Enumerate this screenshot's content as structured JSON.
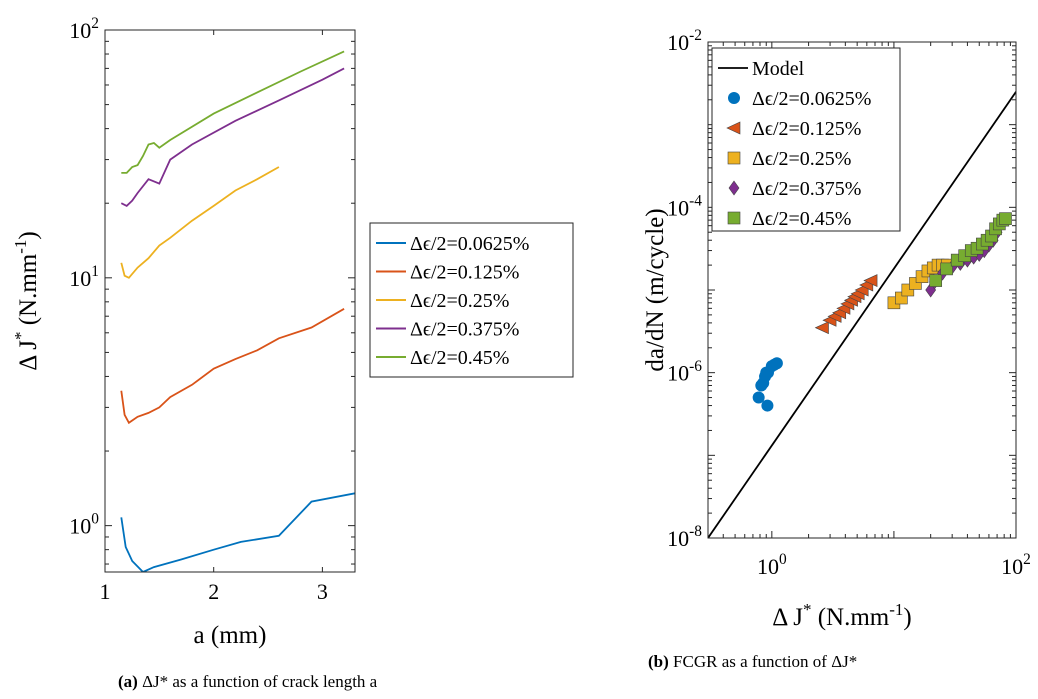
{
  "chart_data": [
    {
      "type": "line",
      "panel": "a",
      "caption_tag": "(a)",
      "caption_text": "ΔJ* as a function of crack length a",
      "xlabel": "a (mm)",
      "ylabel": "Δ J* (N.mm-1)",
      "xscale": "linear",
      "yscale": "log",
      "xlim": [
        1,
        3.3
      ],
      "ylim": [
        0.65,
        100
      ],
      "xticks": [
        1,
        2,
        3
      ],
      "xtick_labels": [
        "1",
        "2",
        "3"
      ],
      "yticks": [
        1,
        10,
        100
      ],
      "ytick_labels": [
        [
          "10",
          "0"
        ],
        [
          "10",
          "1"
        ],
        [
          "10",
          "2"
        ]
      ],
      "legend_position": "outside-right",
      "series": [
        {
          "name": "Δϵ/2=0.0625%",
          "color": "#0072BD",
          "x": [
            1.15,
            1.19,
            1.25,
            1.35,
            1.45,
            1.7,
            2.0,
            2.25,
            2.6,
            2.9,
            3.3
          ],
          "y": [
            1.08,
            0.82,
            0.72,
            0.65,
            0.68,
            0.73,
            0.8,
            0.86,
            0.91,
            1.25,
            1.35
          ]
        },
        {
          "name": "Δϵ/2=0.125%",
          "color": "#D95319",
          "x": [
            1.15,
            1.18,
            1.22,
            1.3,
            1.4,
            1.5,
            1.6,
            1.8,
            2.0,
            2.2,
            2.4,
            2.6,
            2.9,
            3.2
          ],
          "y": [
            3.5,
            2.8,
            2.6,
            2.75,
            2.85,
            3.0,
            3.3,
            3.7,
            4.3,
            4.7,
            5.1,
            5.7,
            6.3,
            7.5
          ]
        },
        {
          "name": "Δϵ/2=0.25%",
          "color": "#EDB120",
          "x": [
            1.15,
            1.18,
            1.22,
            1.3,
            1.4,
            1.5,
            1.6,
            1.8,
            2.0,
            2.2,
            2.4,
            2.6
          ],
          "y": [
            11.5,
            10.2,
            10.0,
            11.0,
            12.0,
            13.5,
            14.5,
            17.0,
            19.5,
            22.5,
            25.0,
            28.0
          ]
        },
        {
          "name": "Δϵ/2=0.375%",
          "color": "#7E2F8E",
          "x": [
            1.15,
            1.2,
            1.25,
            1.3,
            1.4,
            1.5,
            1.6,
            1.8,
            2.2,
            2.6,
            3.0,
            3.2
          ],
          "y": [
            20.0,
            19.5,
            20.5,
            22.0,
            25.0,
            24.0,
            30.0,
            34.5,
            43.0,
            52.0,
            63.0,
            70.0
          ]
        },
        {
          "name": "Δϵ/2=0.45%",
          "color": "#77AC30",
          "x": [
            1.15,
            1.2,
            1.25,
            1.3,
            1.35,
            1.4,
            1.45,
            1.5,
            1.6,
            2.0,
            2.4,
            2.8,
            3.2
          ],
          "y": [
            26.5,
            26.5,
            28.0,
            28.5,
            31.0,
            34.5,
            35.0,
            33.5,
            36.0,
            46.0,
            56.0,
            68.0,
            82.0
          ]
        }
      ]
    },
    {
      "type": "scatter",
      "panel": "b",
      "caption_tag": "(b)",
      "caption_text": "FCGR as a function of ΔJ*",
      "xlabel": "Δ J* (N.mm-1)",
      "ylabel": "da/dN (m/cycle)",
      "xscale": "log",
      "yscale": "log",
      "xlim": [
        0.3,
        100
      ],
      "ylim": [
        1e-08,
        0.01
      ],
      "xticks": [
        1,
        100
      ],
      "xtick_labels": [
        [
          "10",
          "0"
        ],
        [
          "10",
          "2"
        ]
      ],
      "yticks": [
        1e-08,
        1e-06,
        0.0001,
        0.01
      ],
      "ytick_labels": [
        [
          "10",
          "-8"
        ],
        [
          "10",
          "-6"
        ],
        [
          "10",
          "-4"
        ],
        [
          "10",
          "-2"
        ]
      ],
      "legend_position": "top-left",
      "model": {
        "name": "Model",
        "color": "#000000",
        "x": [
          0.3,
          100
        ],
        "y": [
          1e-08,
          0.0025
        ]
      },
      "series": [
        {
          "name": "Δϵ/2=0.0625%",
          "marker": "circle",
          "color": "#0072BD",
          "x": [
            0.78,
            0.82,
            0.85,
            0.88,
            0.9,
            0.93,
            1.0,
            1.05,
            1.1,
            0.92
          ],
          "y": [
            5e-07,
            7e-07,
            7.5e-07,
            9e-07,
            1e-06,
            1e-06,
            1.2e-06,
            1.25e-06,
            1.3e-06,
            4e-07
          ]
        },
        {
          "name": "Δϵ/2=0.125%",
          "marker": "triangle-left",
          "color": "#D95319",
          "x": [
            2.6,
            3.0,
            3.3,
            3.6,
            3.9,
            4.2,
            4.5,
            4.8,
            5.1,
            5.5,
            6.0,
            6.5
          ],
          "y": [
            3.5e-06,
            4.3e-06,
            4.8e-06,
            5.3e-06,
            6e-06,
            6.8e-06,
            7.5e-06,
            8.3e-06,
            9e-06,
            1e-05,
            1.15e-05,
            1.3e-05
          ]
        },
        {
          "name": "Δϵ/2=0.25%",
          "marker": "square",
          "color": "#EDB120",
          "x": [
            10.0,
            11.5,
            13.0,
            15.0,
            17.0,
            19.0,
            21.0,
            23.0,
            25.0,
            27.5
          ],
          "y": [
            7e-06,
            8e-06,
            1e-05,
            1.2e-05,
            1.45e-05,
            1.7e-05,
            1.85e-05,
            2e-05,
            2e-05,
            2e-05
          ]
        },
        {
          "name": "Δϵ/2=0.375%",
          "marker": "diamond",
          "color": "#7E2F8E",
          "x": [
            20.0,
            21.5,
            25.0,
            30.0,
            35.0,
            40.0,
            45.0,
            50.0,
            55.0,
            60.0,
            65.0,
            70.0
          ],
          "y": [
            1e-05,
            1.25e-05,
            1.6e-05,
            1.9e-05,
            2.1e-05,
            2.3e-05,
            2.5e-05,
            2.7e-05,
            3e-05,
            3.5e-05,
            4e-05,
            5e-05
          ]
        },
        {
          "name": "Δϵ/2=0.45%",
          "marker": "square",
          "color": "#77AC30",
          "x": [
            22.0,
            27.0,
            33.0,
            38.0,
            43.0,
            48.0,
            53.0,
            58.0,
            63.0,
            68.0,
            73.0,
            78.0,
            82.0
          ],
          "y": [
            1.3e-05,
            1.8e-05,
            2.3e-05,
            2.6e-05,
            3e-05,
            3.2e-05,
            3.6e-05,
            4e-05,
            4.5e-05,
            5.5e-05,
            6.3e-05,
            7e-05,
            7.3e-05
          ]
        }
      ]
    }
  ]
}
